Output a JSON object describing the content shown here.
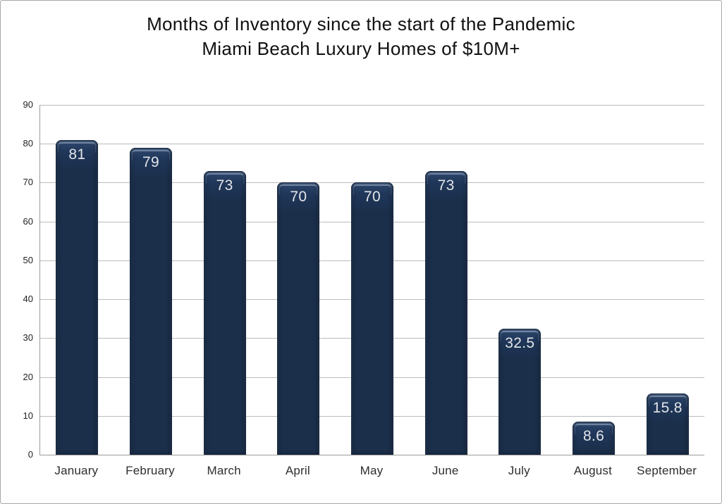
{
  "title": {
    "line1": "Months of Inventory since the start of the Pandemic",
    "line2": "Miami Beach Luxury Homes of $10M+"
  },
  "chart_data": {
    "type": "bar",
    "title": "Months of Inventory since the start of the Pandemic — Miami Beach Luxury Homes of $10M+",
    "categories": [
      "January",
      "February",
      "March",
      "April",
      "May",
      "June",
      "July",
      "August",
      "September"
    ],
    "values": [
      81,
      79,
      73,
      70,
      70,
      73,
      32.5,
      8.6,
      15.8
    ],
    "bar_labels": [
      "81",
      "79",
      "73",
      "70",
      "70",
      "73",
      "32.5",
      "8.6",
      "15.8"
    ],
    "xlabel": "",
    "ylabel": "",
    "ylim": [
      0,
      90
    ],
    "yticks": [
      0,
      10,
      20,
      30,
      40,
      50,
      60,
      70,
      80,
      90
    ],
    "ytick_labels": [
      "0",
      "10",
      "20",
      "30",
      "40",
      "50",
      "60",
      "70",
      "80",
      "90"
    ],
    "grid": "horizontal-major",
    "legend_position": "none",
    "colors": {
      "bar_fill": "#1b2f4b",
      "bar_cap_highlight": "#2e486d",
      "bar_edge": "#15273f",
      "bar_value_label": "#e2e5e9",
      "gridline": "#bcbcbc",
      "axis_line": "#9b9b9b",
      "title_text": "#101010",
      "tick_text": "#222222",
      "category_text": "#2e2e2e",
      "frame_border": "#a8a8a8",
      "background": "#ffffff"
    }
  }
}
